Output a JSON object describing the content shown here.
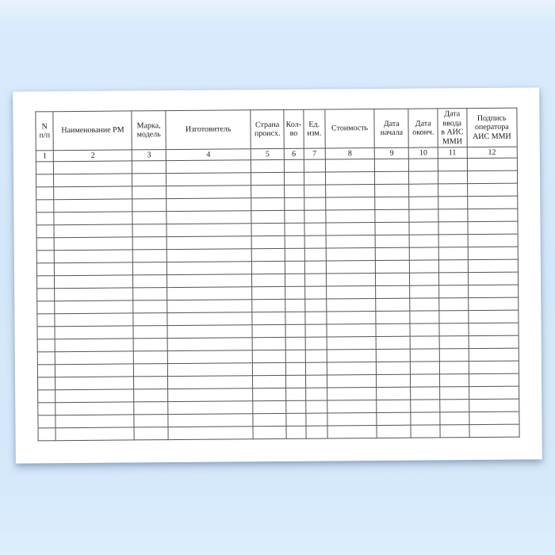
{
  "document": {
    "kind": "blank-registry-form-sheet"
  },
  "table": {
    "columns": [
      {
        "num": "1",
        "label": "N\nп/п"
      },
      {
        "num": "2",
        "label": "Наименование РМ"
      },
      {
        "num": "3",
        "label": "Марка,\nмодель"
      },
      {
        "num": "4",
        "label": "Изготовитель"
      },
      {
        "num": "5",
        "label": "Страна\nпроисх."
      },
      {
        "num": "6",
        "label": "Кол-\nво"
      },
      {
        "num": "7",
        "label": "Ед.\nизм."
      },
      {
        "num": "8",
        "label": "Стоимость"
      },
      {
        "num": "9",
        "label": "Дата\nначала"
      },
      {
        "num": "10",
        "label": "Дата\nоконч."
      },
      {
        "num": "11",
        "label": "Дата\nввода\nв АИС\nММИ"
      },
      {
        "num": "12",
        "label": "Подпись\nоператора\nАИС ММИ"
      }
    ],
    "empty_row_count": 22
  },
  "colors": {
    "background_blue": "#d5e8fa",
    "paper": "#ffffff",
    "grid_line": "#545454",
    "text": "#1b1b1b",
    "shadow": "rgba(104,130,160,0.55)"
  }
}
